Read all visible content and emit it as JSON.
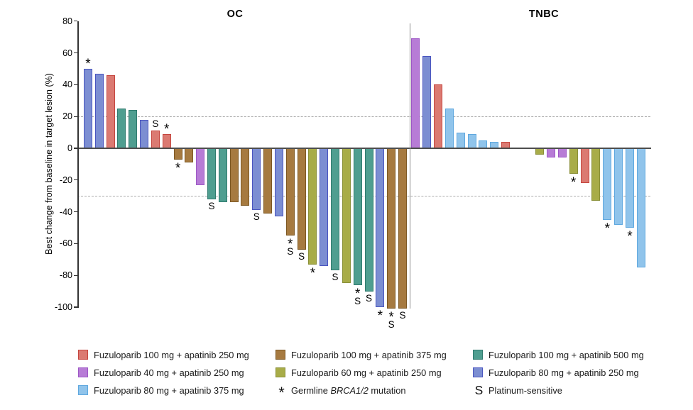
{
  "chart_data": {
    "type": "bar",
    "title": "",
    "ylabel": "Best change from baseline in target lesion (%)",
    "ylim": [
      -100,
      80
    ],
    "yticks": [
      80,
      60,
      40,
      20,
      0,
      -20,
      -40,
      -60,
      -80,
      -100
    ],
    "reference_lines_y": [
      20,
      -30
    ],
    "grid": "dashed horizontal reference lines at +20 and -30",
    "legend_position": "bottom",
    "panels": [
      {
        "title": "OC",
        "bars": [
          {
            "value": 50,
            "arm": "f80_a250",
            "markers": [
              "*"
            ]
          },
          {
            "value": 47,
            "arm": "f80_a250",
            "markers": []
          },
          {
            "value": 46,
            "arm": "f100_a250",
            "markers": []
          },
          {
            "value": 25,
            "arm": "f100_a500",
            "markers": []
          },
          {
            "value": 24,
            "arm": "f100_a500",
            "markers": []
          },
          {
            "value": 18,
            "arm": "f80_a250",
            "markers": []
          },
          {
            "value": 11,
            "arm": "f100_a250",
            "markers": [
              "S"
            ]
          },
          {
            "value": 9,
            "arm": "f100_a250",
            "markers": [
              "*"
            ]
          },
          {
            "value": -7,
            "arm": "f100_a375",
            "markers": [
              "*"
            ]
          },
          {
            "value": -9,
            "arm": "f100_a375",
            "markers": []
          },
          {
            "value": -23,
            "arm": "f40_a250",
            "markers": []
          },
          {
            "value": -32,
            "arm": "f100_a500",
            "markers": [
              "S"
            ]
          },
          {
            "value": -34,
            "arm": "f100_a500",
            "markers": []
          },
          {
            "value": -34,
            "arm": "f100_a375",
            "markers": []
          },
          {
            "value": -36,
            "arm": "f100_a375",
            "markers": []
          },
          {
            "value": -39,
            "arm": "f80_a250",
            "markers": [
              "S"
            ]
          },
          {
            "value": -41,
            "arm": "f100_a375",
            "markers": []
          },
          {
            "value": -43,
            "arm": "f80_a250",
            "markers": []
          },
          {
            "value": -55,
            "arm": "f100_a375",
            "markers": [
              "*",
              "S"
            ]
          },
          {
            "value": -64,
            "arm": "f100_a375",
            "markers": [
              "S"
            ]
          },
          {
            "value": -73,
            "arm": "f60_a250",
            "markers": [
              "*"
            ]
          },
          {
            "value": -74,
            "arm": "f80_a250",
            "markers": []
          },
          {
            "value": -77,
            "arm": "f100_a500",
            "markers": [
              "S"
            ]
          },
          {
            "value": -85,
            "arm": "f60_a250",
            "markers": []
          },
          {
            "value": -86,
            "arm": "f100_a500",
            "markers": [
              "*",
              "S"
            ]
          },
          {
            "value": -90,
            "arm": "f100_a500",
            "markers": [
              "S"
            ]
          },
          {
            "value": -100,
            "arm": "f80_a250",
            "markers": [
              "*"
            ]
          },
          {
            "value": -101,
            "arm": "f100_a375",
            "markers": [
              "*",
              "S"
            ]
          },
          {
            "value": -101,
            "arm": "f100_a375",
            "markers": [
              "S"
            ]
          }
        ]
      },
      {
        "title": "TNBC",
        "bars": [
          {
            "value": 69,
            "arm": "f40_a250",
            "markers": []
          },
          {
            "value": 58,
            "arm": "f80_a250",
            "markers": []
          },
          {
            "value": 40,
            "arm": "f100_a250",
            "markers": []
          },
          {
            "value": 25,
            "arm": "f80_a375",
            "markers": []
          },
          {
            "value": 10,
            "arm": "f80_a375",
            "markers": []
          },
          {
            "value": 9,
            "arm": "f80_a375",
            "markers": []
          },
          {
            "value": 5,
            "arm": "f80_a375",
            "markers": []
          },
          {
            "value": 4,
            "arm": "f80_a375",
            "markers": []
          },
          {
            "value": 4,
            "arm": "f100_a250",
            "markers": []
          },
          {
            "value": -4,
            "arm": "f60_a250",
            "markers": [],
            "gap_before": 2
          },
          {
            "value": -6,
            "arm": "f40_a250",
            "markers": []
          },
          {
            "value": -6,
            "arm": "f40_a250",
            "markers": []
          },
          {
            "value": -16,
            "arm": "f60_a250",
            "markers": [
              "*"
            ]
          },
          {
            "value": -22,
            "arm": "f100_a250",
            "markers": []
          },
          {
            "value": -33,
            "arm": "f60_a250",
            "markers": []
          },
          {
            "value": -45,
            "arm": "f80_a375",
            "markers": [
              "*"
            ]
          },
          {
            "value": -48,
            "arm": "f80_a375",
            "markers": []
          },
          {
            "value": -50,
            "arm": "f80_a375",
            "markers": [
              "*"
            ]
          },
          {
            "value": -75,
            "arm": "f80_a375",
            "markers": []
          }
        ]
      }
    ],
    "arms": {
      "f100_a250": {
        "label": "Fuzuloparib 100 mg + apatinib 250 mg",
        "fill": "#DB7A72",
        "border": "#C5463F"
      },
      "f40_a250": {
        "label": "Fuzuloparib 40 mg + apatinib 250 mg",
        "fill": "#B77CD6",
        "border": "#9E58C6"
      },
      "f80_a375": {
        "label": "Fuzuloparib 80 mg + apatinib 375 mg",
        "fill": "#90C4EB",
        "border": "#5FA8DF"
      },
      "f100_a375": {
        "label": "Fuzuloparib 100 mg + apatinib 375 mg",
        "fill": "#A67A40",
        "border": "#7D5823"
      },
      "f60_a250": {
        "label": "Fuzuloparib 60 mg + apatinib 250 mg",
        "fill": "#A8AC48",
        "border": "#8A9038"
      },
      "f100_a500": {
        "label": "Fuzuloparib 100 mg + apatinib 500 mg",
        "fill": "#4F9E90",
        "border": "#2F7A6E"
      },
      "f80_a250": {
        "label": "Fuzuloparib 80 mg + apatinib 250 mg",
        "fill": "#7C8ED2",
        "border": "#4A55C0"
      }
    },
    "marker_legend": [
      {
        "symbol": "*",
        "prefix": "Germline ",
        "italic": "BRCA1/2",
        "suffix": " mutation"
      },
      {
        "symbol": "S",
        "label": "Platinum-sensitive"
      }
    ],
    "legend_columns": [
      [
        {
          "arm": "f100_a250"
        },
        {
          "arm": "f40_a250"
        },
        {
          "arm": "f80_a375"
        }
      ],
      [
        {
          "arm": "f100_a375"
        },
        {
          "arm": "f60_a250"
        },
        {
          "marker": "*"
        }
      ],
      [
        {
          "arm": "f100_a500"
        },
        {
          "arm": "f80_a250"
        },
        {
          "marker": "S"
        }
      ]
    ]
  }
}
